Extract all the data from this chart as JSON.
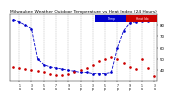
{
  "title": "Milwaukee Weather Outdoor Temperature vs Heat Index (24 Hours)",
  "title_fontsize": 3.2,
  "bg_color": "#ffffff",
  "plot_bg": "#ffffff",
  "grid_color": "#888888",
  "temp_color": "#0000cc",
  "heat_color": "#cc0000",
  "temp_y": [
    85,
    83,
    80,
    77,
    50,
    45,
    43,
    42,
    41,
    40,
    39,
    38,
    38,
    37,
    37,
    37,
    38,
    60,
    75,
    82,
    83,
    84,
    84,
    85
  ],
  "heat_y": [
    43,
    42,
    41,
    40,
    39,
    38,
    37,
    36,
    36,
    37,
    38,
    40,
    42,
    45,
    48,
    50,
    52,
    50,
    46,
    43,
    41,
    50,
    42,
    35
  ],
  "ylim": [
    30,
    90
  ],
  "ytick_vals": [
    40,
    50,
    60,
    70,
    80
  ],
  "ytick_labels": [
    "40",
    "50",
    "60",
    "70",
    "80"
  ],
  "xtick_positions": [
    1,
    3,
    5,
    7,
    9,
    11,
    13,
    15,
    17,
    19,
    21,
    23
  ],
  "xtick_labels": [
    "1\na",
    "3\na",
    "5\na",
    "7\na",
    "9\na",
    "1\np",
    "3\np",
    "5\np",
    "7\np",
    "9\np",
    "1\na",
    "3\na"
  ],
  "grid_x_positions": [
    1,
    3,
    5,
    7,
    9,
    11,
    13,
    15,
    17,
    19,
    21,
    23
  ],
  "legend_blue_label": "Temp",
  "legend_red_label": "Heat Idx",
  "line_width": 0.6,
  "marker_size": 1.8
}
